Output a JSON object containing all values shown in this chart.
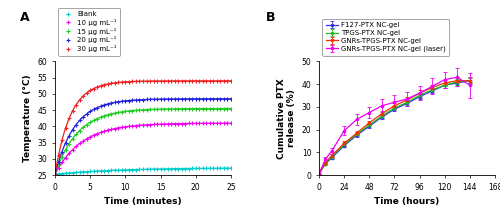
{
  "panel_A": {
    "xlabel": "Time (minutes)",
    "ylabel": "Temperature (°C)",
    "ylim": [
      25,
      60
    ],
    "xlim": [
      0,
      25
    ],
    "yticks": [
      25,
      30,
      35,
      40,
      45,
      50,
      55,
      60
    ],
    "xticks": [
      0,
      5,
      10,
      15,
      20,
      25
    ],
    "series": [
      {
        "label": "Blank",
        "color": "#00CCCC",
        "T_start": 25.3,
        "T_end": 27.3,
        "tau": 9.0
      },
      {
        "label": "10 μg mL⁻¹",
        "color": "#EE00EE",
        "T_start": 25.3,
        "T_end": 41.0,
        "tau": 3.8
      },
      {
        "label": "15 μg mL⁻¹",
        "color": "#22CC22",
        "T_start": 25.3,
        "T_end": 45.5,
        "tau": 3.2
      },
      {
        "label": "20 μg mL⁻¹",
        "color": "#2222DD",
        "T_start": 25.3,
        "T_end": 48.5,
        "tau": 2.8
      },
      {
        "label": "30 μg mL⁻¹",
        "color": "#EE2222",
        "T_start": 25.3,
        "T_end": 54.0,
        "tau": 2.2
      }
    ]
  },
  "panel_B": {
    "xlabel": "Time (hours)",
    "ylabel": "Cumulative PTX\nrelease (%)",
    "ylim": [
      0,
      50
    ],
    "xlim": [
      0,
      168
    ],
    "yticks": [
      0,
      10,
      20,
      30,
      40,
      50
    ],
    "xticks": [
      0,
      24,
      48,
      72,
      96,
      120,
      144,
      168
    ],
    "time_hours": [
      0,
      6,
      12,
      24,
      36,
      48,
      60,
      72,
      84,
      96,
      108,
      120,
      132,
      144
    ],
    "series": [
      {
        "label": "F127-PTX NC-gel",
        "color": "#3333EE",
        "values": [
          0.5,
          5.0,
          7.5,
          13.0,
          17.5,
          21.5,
          25.5,
          29.0,
          31.5,
          34.5,
          37.0,
          39.5,
          40.5,
          41.5
        ],
        "errors": [
          0.2,
          0.4,
          0.5,
          0.7,
          0.8,
          0.9,
          0.9,
          1.0,
          1.0,
          1.0,
          1.0,
          1.2,
          1.2,
          1.2
        ]
      },
      {
        "label": "TPGS-PTX NC-gel",
        "color": "#22BB22",
        "values": [
          0.5,
          5.0,
          8.0,
          13.5,
          18.0,
          22.0,
          26.0,
          29.5,
          32.0,
          35.0,
          37.5,
          39.5,
          41.0,
          41.5
        ],
        "errors": [
          0.2,
          0.4,
          0.5,
          0.7,
          0.8,
          0.9,
          0.9,
          1.0,
          1.0,
          1.0,
          1.0,
          1.2,
          1.2,
          1.2
        ]
      },
      {
        "label": "GNRs-TPGS-PTX NC-gel",
        "color": "#EE3300",
        "values": [
          0.5,
          5.5,
          8.5,
          14.0,
          18.5,
          23.0,
          27.0,
          30.5,
          33.0,
          36.0,
          38.5,
          40.5,
          41.5,
          41.5
        ],
        "errors": [
          0.2,
          0.5,
          0.6,
          0.8,
          1.0,
          1.0,
          1.2,
          1.2,
          1.2,
          1.2,
          1.2,
          1.5,
          1.5,
          1.5
        ]
      },
      {
        "label": "GNRs-TPGS-PTX NC-gel (laser)",
        "color": "#EE00EE",
        "values": [
          0.5,
          7.0,
          10.5,
          19.5,
          24.5,
          27.5,
          30.5,
          32.0,
          33.5,
          36.0,
          39.0,
          42.0,
          43.0,
          39.5
        ],
        "errors": [
          0.2,
          1.0,
          1.3,
          2.0,
          2.5,
          2.5,
          2.8,
          3.0,
          3.2,
          3.2,
          3.5,
          3.5,
          4.0,
          5.5
        ]
      }
    ]
  }
}
